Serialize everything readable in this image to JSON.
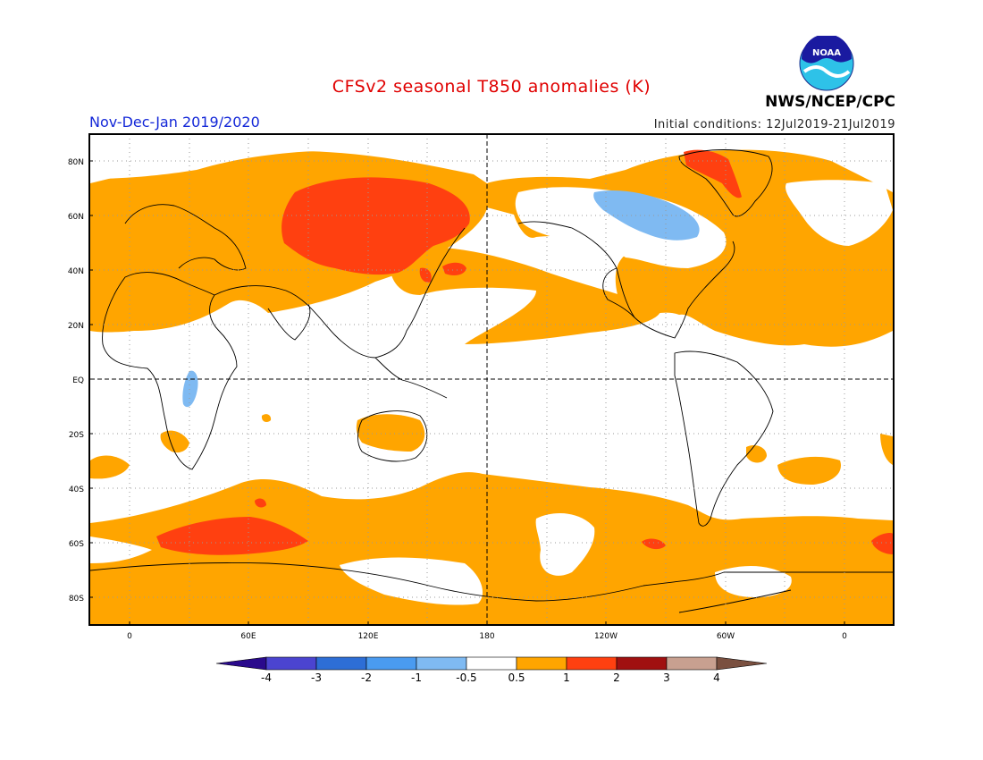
{
  "header": {
    "title": "CFSv2 seasonal T850 anomalies (K)",
    "period": "Nov-Dec-Jan 2019/2020",
    "initial_conditions": "Initial conditions: 12Jul2019-21Jul2019",
    "agency": "NWS/NCEP/CPC",
    "logo_text": "NOAA"
  },
  "axes": {
    "lat_labels": [
      "80N",
      "60N",
      "40N",
      "20N",
      "EQ",
      "20S",
      "40S",
      "60S",
      "80S"
    ],
    "lon_labels": [
      "0",
      "60E",
      "120E",
      "180",
      "120W",
      "60W",
      "0"
    ]
  },
  "colorbar": {
    "labels": [
      "-4",
      "-3",
      "-2",
      "-1",
      "-0.5",
      "0.5",
      "1",
      "2",
      "3",
      "4"
    ],
    "colors": [
      "#2a0a8c",
      "#4b44d0",
      "#2d6ed6",
      "#4a9bf0",
      "#7fbaf2",
      "#ffffff",
      "#ffa500",
      "#ff4010",
      "#a01010",
      "#c8a090",
      "#7a5040"
    ]
  },
  "chart_data": {
    "type": "heatmap",
    "title": "CFSv2 seasonal T850 anomalies (K)",
    "units": "K",
    "projection": "cylindrical equidistant, Greenwich-centered with 180 at center",
    "lon_range": [
      -20,
      380
    ],
    "lat_range": [
      -90,
      90
    ],
    "contour_levels": [
      -4,
      -3,
      -2,
      -1,
      -0.5,
      0.5,
      1,
      2,
      3,
      4
    ],
    "dominant_category": "0.5 to 1 K (orange) over most mid/high latitudes",
    "regions": [
      {
        "name": "Siberia / East Asia",
        "anomaly": "1 to 2 K"
      },
      {
        "name": "Greenland",
        "anomaly": "1 to 2 K"
      },
      {
        "name": "Southern Ocean south of Africa",
        "anomaly": "1 to 2 K"
      },
      {
        "name": "Central Canada",
        "anomaly": "-1 to -0.5 K"
      },
      {
        "name": "East Africa",
        "anomaly": "-1 to -0.5 K"
      },
      {
        "name": "Tropics",
        "anomaly": "-0.5 to 0.5 K"
      }
    ]
  }
}
